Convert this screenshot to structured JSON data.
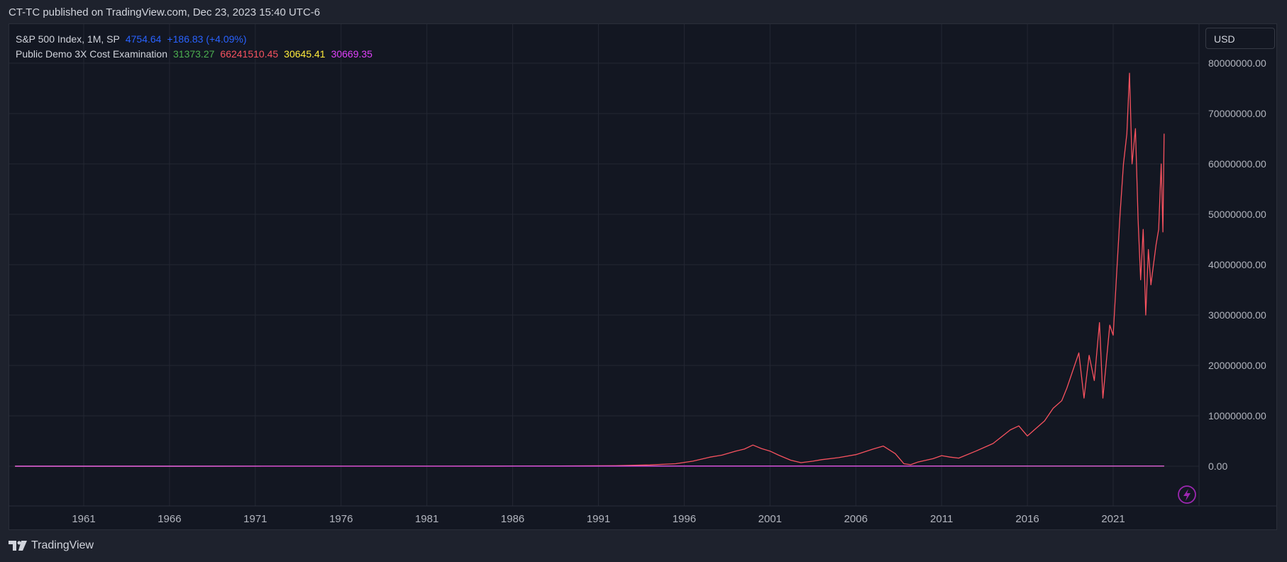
{
  "header": {
    "text": "CT-TC published on TradingView.com, Dec 23, 2023 15:40 UTC-6"
  },
  "legend": {
    "main": {
      "name": "S&P 500 Index, 1M, SP",
      "price": "4754.64",
      "change": "+186.83 (+4.09%)",
      "price_color": "#2962ff"
    },
    "indicator": {
      "name": "Public Demo 3X Cost Examination",
      "v1": "31373.27",
      "v1_color": "#4caf50",
      "v2": "66241510.45",
      "v2_color": "#f7525f",
      "v3": "30645.41",
      "v3_color": "#ffeb3b",
      "v4": "30669.35",
      "v4_color": "#e040fb"
    }
  },
  "currency_button": {
    "label": "USD"
  },
  "footer": {
    "brand": "TradingView"
  },
  "bolt_icon": {
    "name": "lightning-icon",
    "color": "#9c27b0"
  },
  "chart_data": {
    "type": "line",
    "ylim": [
      -8000000,
      80000000
    ],
    "y_ticks": [
      80000000,
      70000000,
      60000000,
      50000000,
      40000000,
      30000000,
      20000000,
      10000000,
      0
    ],
    "y_tick_labels": [
      "80000000.00",
      "70000000.00",
      "60000000.00",
      "50000000.00",
      "40000000.00",
      "30000000.00",
      "20000000.00",
      "10000000.00",
      "0.00"
    ],
    "x_ticks": [
      1961,
      1966,
      1971,
      1976,
      1981,
      1986,
      1991,
      1996,
      2001,
      2006,
      2011,
      2016,
      2021
    ],
    "x_tick_labels": [
      "1961",
      "1966",
      "1971",
      "1976",
      "1981",
      "1986",
      "1991",
      "1996",
      "2001",
      "2006",
      "2011",
      "2016",
      "2021"
    ],
    "grid": true,
    "series": [
      {
        "color": "#f7525f",
        "x": [
          1957,
          1985,
          1992,
          1994,
          1995.5,
          1996.5,
          1997.5,
          1998.2,
          1999,
          1999.5,
          2000,
          2000.5,
          2001,
          2001.5,
          2002.2,
          2002.8,
          2003.5,
          2004,
          2005,
          2006,
          2007,
          2007.6,
          2008.3,
          2008.8,
          2009.2,
          2009.6,
          2010.5,
          2011,
          2011.5,
          2012,
          2013,
          2014,
          2015,
          2015.5,
          2016,
          2016.5,
          2017,
          2017.5,
          2018,
          2018.3,
          2018.7,
          2019,
          2019.3,
          2019.6,
          2019.9,
          2020.2,
          2020.4,
          2020.8,
          2021,
          2021.2,
          2021.4,
          2021.6,
          2021.8,
          2021.95,
          2022.1,
          2022.3,
          2022.45,
          2022.6,
          2022.75,
          2022.9,
          2023.05,
          2023.2,
          2023.35,
          2023.5,
          2023.65,
          2023.8,
          2023.9,
          2023.97
        ],
        "y": [
          0,
          0,
          100000,
          250000,
          500000,
          1000000,
          1800000,
          2200000,
          3000000,
          3400000,
          4200000,
          3500000,
          3000000,
          2200000,
          1200000,
          700000,
          1000000,
          1300000,
          1700000,
          2300000,
          3400000,
          4000000,
          2500000,
          500000,
          300000,
          800000,
          1500000,
          2100000,
          1800000,
          1600000,
          3000000,
          4500000,
          7200000,
          8000000,
          6000000,
          7500000,
          9000000,
          11500000,
          13000000,
          15500000,
          19500000,
          22500000,
          13500000,
          22000000,
          17000000,
          28500000,
          13500000,
          28000000,
          26000000,
          38000000,
          50000000,
          60000000,
          66000000,
          78000000,
          60000000,
          67000000,
          49000000,
          37000000,
          47000000,
          30000000,
          43000000,
          36000000,
          40000000,
          44000000,
          47000000,
          60000000,
          46500000,
          66000000
        ]
      },
      {
        "color": "#4caf50",
        "x": [
          1957,
          2023.97
        ],
        "y": [
          0,
          31373.27
        ]
      },
      {
        "color": "#ffeb3b",
        "x": [
          1957,
          2023.97
        ],
        "y": [
          0,
          30645.41
        ]
      },
      {
        "color": "#e040fb",
        "x": [
          1957,
          2023.97
        ],
        "y": [
          0,
          30669.35
        ]
      }
    ]
  }
}
